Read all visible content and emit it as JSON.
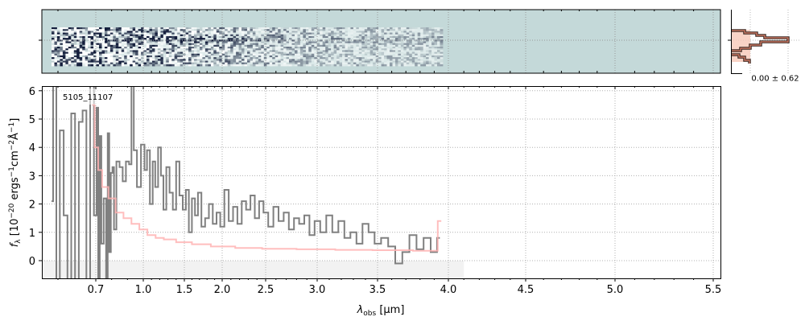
{
  "chart_data": {
    "type": "line",
    "object_label": "5105_11107",
    "xlabel": "λobs [µm]",
    "xlabel_parts": {
      "sym": "λ",
      "sub": "obs",
      "unit": " [µm]"
    },
    "ylabel": "fλ [10^-20 ergs^-1cm^-2Å^-1]",
    "ylabel_parts": {
      "f": "f",
      "sub": "λ",
      "a": " [10",
      "e1": "−20",
      "b": " ergs",
      "e2": "−1",
      "c": "cm",
      "e3": "−2",
      "d": "Å",
      "e4": "−1",
      "e": "]"
    },
    "xlim": [
      0.55,
      5.52
    ],
    "ylim": [
      -0.63,
      6.1
    ],
    "x_ticks": [
      0.7,
      1.0,
      1.5,
      2.0,
      2.5,
      3.0,
      3.5,
      4.0,
      4.5,
      5.0,
      5.5
    ],
    "x_tick_labels": [
      "0.7",
      "1.0",
      "1.5",
      "2.0",
      "2.5",
      "3.0",
      "3.5",
      "4.0",
      "4.5",
      "5.0",
      "5.5"
    ],
    "y_ticks": [
      0,
      1,
      2,
      3,
      4,
      5,
      6
    ],
    "y_tick_labels": [
      "0",
      "1",
      "2",
      "3",
      "4",
      "5",
      "6"
    ],
    "grid": true,
    "colors": {
      "spectrum": "#808080",
      "model": "#ffb3b3",
      "panel_bg": "#c4d9d9",
      "hist_line": "#5a3a30",
      "hist_fill": "#f8c8b8"
    },
    "series": [
      {
        "role": "spectrum",
        "x": [
          0.58,
          0.59,
          0.6,
          0.61,
          0.62,
          0.63,
          0.64,
          0.65,
          0.66,
          0.67,
          0.68,
          0.69,
          0.7,
          0.71,
          0.72,
          0.73,
          0.74,
          0.76,
          0.77,
          0.78,
          0.79,
          0.8,
          0.81,
          0.82,
          0.84,
          0.86,
          0.88,
          0.9,
          0.92,
          0.93,
          0.95,
          0.97,
          1.0,
          1.03,
          1.06,
          1.1,
          1.13,
          1.16,
          1.2,
          1.23,
          1.26,
          1.3,
          1.34,
          1.38,
          1.42,
          1.46,
          1.5,
          1.54,
          1.58,
          1.62,
          1.66,
          1.7,
          1.75,
          1.8,
          1.85,
          1.9,
          1.95,
          2.0,
          2.05,
          2.1,
          2.15,
          2.2,
          2.25,
          2.3,
          2.35,
          2.4,
          2.45,
          2.5,
          2.55,
          2.6,
          2.65,
          2.7,
          2.75,
          2.8,
          2.85,
          2.9,
          2.95,
          3.0,
          3.05,
          3.1,
          3.15,
          3.2,
          3.25,
          3.3,
          3.35,
          3.4,
          3.45,
          3.5,
          3.55,
          3.6,
          3.65,
          3.7,
          3.75,
          3.8,
          3.85,
          3.9,
          3.94
        ],
        "y": [
          2.1,
          6.5,
          -1,
          4.6,
          1.6,
          -1,
          5.2,
          -1,
          4.9,
          5.3,
          -1,
          6.5,
          1.6,
          5.4,
          -1,
          4.4,
          0.6,
          2.2,
          -1,
          4.5,
          0.3,
          3.1,
          3.3,
          1.1,
          3.5,
          3.3,
          2.8,
          3.5,
          3.4,
          6.5,
          3.9,
          2.6,
          4.1,
          3.2,
          3.9,
          2.0,
          3.5,
          2.6,
          4.0,
          3.0,
          1.8,
          3.3,
          2.4,
          1.8,
          3.5,
          2.3,
          1.8,
          2.5,
          1.0,
          2.2,
          1.6,
          2.4,
          1.2,
          1.5,
          2.0,
          1.3,
          1.7,
          1.2,
          2.5,
          1.4,
          1.9,
          1.3,
          2.1,
          1.8,
          2.3,
          1.5,
          2.1,
          1.7,
          1.2,
          1.9,
          1.4,
          1.7,
          1.1,
          1.5,
          1.3,
          1.6,
          0.9,
          1.4,
          1.0,
          1.6,
          1.0,
          1.4,
          0.8,
          1.0,
          0.6,
          1.3,
          1.0,
          0.6,
          0.8,
          0.5,
          -0.1,
          0.3,
          0.9,
          0.4,
          0.8,
          0.3,
          0.8
        ]
      },
      {
        "role": "model",
        "x": [
          0.69,
          0.71,
          0.72,
          0.76,
          0.8,
          0.85,
          0.9,
          0.95,
          1.0,
          1.1,
          1.2,
          1.3,
          1.5,
          1.7,
          2.0,
          2.3,
          2.6,
          3.0,
          3.3,
          3.6,
          3.9,
          3.95
        ],
        "y": [
          5.5,
          4.0,
          3.2,
          2.6,
          2.2,
          1.7,
          1.5,
          1.3,
          1.1,
          0.9,
          0.8,
          0.75,
          0.65,
          0.58,
          0.5,
          0.45,
          0.42,
          0.4,
          0.38,
          0.37,
          0.35,
          1.4
        ]
      }
    ],
    "shaded_band": {
      "x": [
        0.55,
        4.1
      ],
      "y": [
        -0.63,
        0
      ]
    },
    "histogram_label": "0.00 ± 0.62"
  }
}
